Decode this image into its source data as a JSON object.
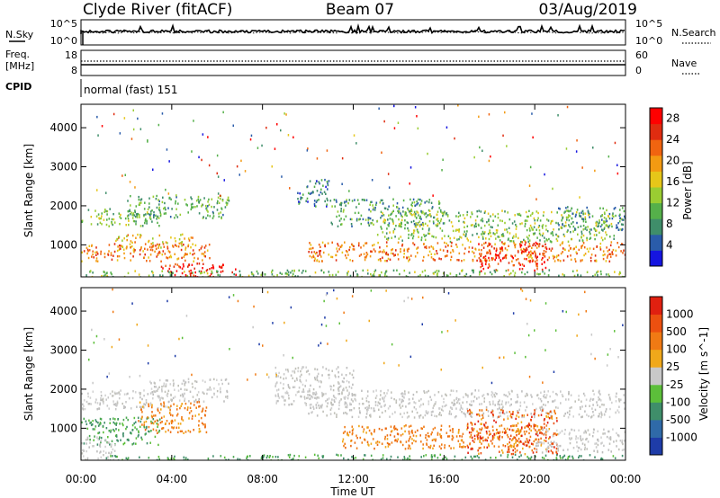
{
  "header": {
    "station": "Clyde River (fitACF)",
    "beam": "Beam 07",
    "date": "03/Aug/2019"
  },
  "noise_panel": {
    "left_label": "N.Sky",
    "right_label": "N.Search",
    "left_ticks": [
      "10^5",
      "10^0"
    ],
    "right_ticks": [
      "10^5",
      "10^0"
    ]
  },
  "freq_panel": {
    "left_label_1": "Freq.",
    "left_label_2": "[MHz]",
    "left_ticks": [
      "18",
      "8"
    ],
    "right_label": "Nave",
    "right_ticks": [
      "60",
      "0"
    ]
  },
  "cpid": {
    "label": "CPID",
    "mode": "normal (fast) 151"
  },
  "chart_data": [
    {
      "type": "heatmap",
      "name": "power",
      "ylabel": "Slant Range [km]",
      "xlabel": "Time UT",
      "x_ticks": [
        "00:00",
        "04:00",
        "08:00",
        "12:00",
        "16:00",
        "20:00",
        "00:00"
      ],
      "y_ticks": [
        1000,
        2000,
        3000,
        4000
      ],
      "xlim_hours": [
        0,
        24
      ],
      "ylim_km": [
        180,
        4600
      ],
      "colorbar": {
        "label": "Power [dB]",
        "ticks": [
          "4",
          "8",
          "12",
          "16",
          "20",
          "24",
          "28"
        ],
        "range": [
          0,
          30
        ],
        "colors": [
          "#1515e0",
          "#2a5caa",
          "#3f8e6a",
          "#55b04a",
          "#9acd32",
          "#e6c619",
          "#f39a12",
          "#f06410",
          "#e02c10",
          "#ff0000"
        ]
      },
      "regions": [
        {
          "t": [
            0.0,
            3.5
          ],
          "r": [
            1500,
            1950
          ],
          "level": 11
        },
        {
          "t": [
            2.0,
            6.5
          ],
          "r": [
            1700,
            2300
          ],
          "level": 10
        },
        {
          "t": [
            0.0,
            5.8
          ],
          "r": [
            600,
            1050
          ],
          "level": 22
        },
        {
          "t": [
            1.5,
            5.0
          ],
          "r": [
            950,
            1300
          ],
          "level": 18
        },
        {
          "t": [
            3.5,
            6.8
          ],
          "r": [
            200,
            550
          ],
          "level": 27
        },
        {
          "t": [
            0.0,
            8.0
          ],
          "r": [
            180,
            360
          ],
          "level": 12
        },
        {
          "t": [
            9.5,
            11.0
          ],
          "r": [
            2000,
            2700
          ],
          "level": 7
        },
        {
          "t": [
            11.0,
            16.0
          ],
          "r": [
            1500,
            2200
          ],
          "level": 9
        },
        {
          "t": [
            13.0,
            23.5
          ],
          "r": [
            1100,
            1900
          ],
          "level": 12
        },
        {
          "t": [
            10.0,
            24.0
          ],
          "r": [
            600,
            1100
          ],
          "level": 21
        },
        {
          "t": [
            17.5,
            20.5
          ],
          "r": [
            350,
            1100
          ],
          "level": 26
        },
        {
          "t": [
            8.0,
            24.0
          ],
          "r": [
            180,
            380
          ],
          "level": 11
        },
        {
          "t": [
            21.0,
            24.0
          ],
          "r": [
            1400,
            2000
          ],
          "level": 8
        }
      ]
    },
    {
      "type": "heatmap",
      "name": "velocity",
      "ylabel": "Slant Range [km]",
      "xlabel": "Time UT",
      "x_ticks": [
        "00:00",
        "04:00",
        "08:00",
        "12:00",
        "16:00",
        "20:00",
        "00:00"
      ],
      "y_ticks": [
        1000,
        2000,
        3000,
        4000
      ],
      "xlim_hours": [
        0,
        24
      ],
      "ylim_km": [
        180,
        4600
      ],
      "colorbar": {
        "label": "Velocity [m s^-1]",
        "ticks": [
          "1000",
          "500",
          "100",
          "25",
          "-25",
          "-100",
          "-500",
          "-1000"
        ],
        "colors": [
          "#1e3ca8",
          "#2f6aa8",
          "#3f8e6a",
          "#5cbf3a",
          "#c8c8c8",
          "#f0a81a",
          "#f07a14",
          "#ec5010",
          "#e02010"
        ]
      },
      "regions": [
        {
          "t": [
            0.0,
            4.0
          ],
          "r": [
            1500,
            2000
          ],
          "level": "gray"
        },
        {
          "t": [
            3.0,
            6.5
          ],
          "r": [
            1700,
            2300
          ],
          "level": "gray"
        },
        {
          "t": [
            0.0,
            3.5
          ],
          "r": [
            600,
            1300
          ],
          "level": "green"
        },
        {
          "t": [
            2.5,
            5.5
          ],
          "r": [
            900,
            1700
          ],
          "level": "orange"
        },
        {
          "t": [
            0.0,
            1.5
          ],
          "r": [
            200,
            800
          ],
          "level": "gray"
        },
        {
          "t": [
            1.0,
            8.5
          ],
          "r": [
            180,
            320
          ],
          "level": "green"
        },
        {
          "t": [
            8.5,
            12.0
          ],
          "r": [
            1600,
            2600
          ],
          "level": "gray"
        },
        {
          "t": [
            10.0,
            24.0
          ],
          "r": [
            1300,
            2000
          ],
          "level": "gray"
        },
        {
          "t": [
            11.5,
            20.5
          ],
          "r": [
            500,
            1100
          ],
          "level": "orange"
        },
        {
          "t": [
            17.0,
            21.0
          ],
          "r": [
            350,
            1500
          ],
          "level": "redorange"
        },
        {
          "t": [
            20.0,
            24.0
          ],
          "r": [
            400,
            1000
          ],
          "level": "gray"
        },
        {
          "t": [
            8.0,
            24.0
          ],
          "r": [
            180,
            350
          ],
          "level": "green"
        }
      ]
    }
  ]
}
